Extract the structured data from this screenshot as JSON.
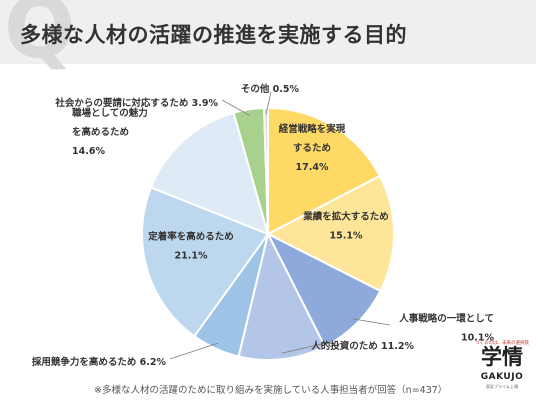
{
  "header": {
    "title": "多様な人材の活躍の推進を実施する目的",
    "q_mark": "Q"
  },
  "chart_data": {
    "type": "pie",
    "title": "",
    "slices": [
      {
        "lines": [
          "経営戦略を実現",
          "するため",
          "17.4%"
        ],
        "value": 17.4,
        "color": "#ffd966"
      },
      {
        "lines": [
          "業績を拡大するため",
          "15.1%"
        ],
        "value": 15.1,
        "color": "#ffe599"
      },
      {
        "lines": [
          "人事戦略の一環として",
          "10.1%"
        ],
        "value": 10.1,
        "color": "#8ea9db"
      },
      {
        "lines": [
          "人的投資のため 11.2%"
        ],
        "value": 11.2,
        "color": "#b4c6e7"
      },
      {
        "lines": [
          "採用競争力を高めるため 6.2%"
        ],
        "value": 6.2,
        "color": "#9dc3e6"
      },
      {
        "lines": [
          "定着率を高めるため",
          "21.1%"
        ],
        "value": 21.1,
        "color": "#bdd7ee"
      },
      {
        "lines": [
          "職場としての魅力",
          "を高めるため",
          "14.6%"
        ],
        "value": 14.6,
        "color": "#deebf7"
      },
      {
        "lines": [
          "社会からの要請に対応するため 3.9%"
        ],
        "value": 3.9,
        "color": "#a9d18e"
      },
      {
        "lines": [
          "その他  0.5%"
        ],
        "value": 0.5,
        "color": "#d9d9d9"
      }
    ]
  },
  "footnote": "※多様な人材の活躍のために取り組みを実施している人事担当者が回答（n=437）",
  "logo": {
    "tagline": "つくるのは、未来の選択肢",
    "mark": "学情",
    "name": "GAKUJO",
    "sub": "東証プライム上場"
  }
}
